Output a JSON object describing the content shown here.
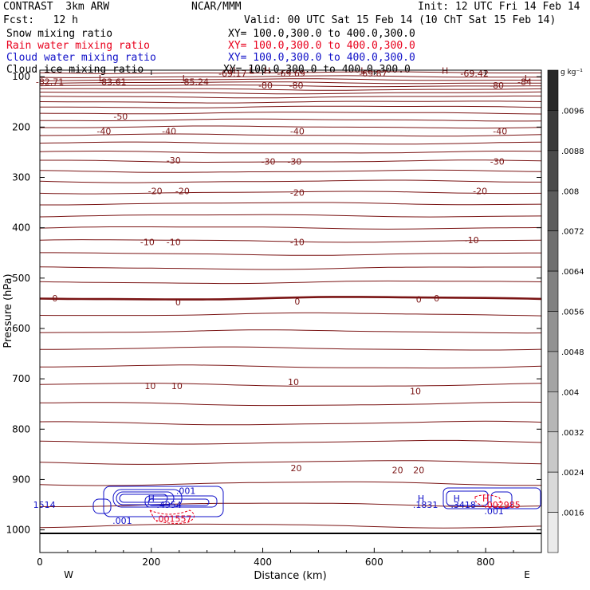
{
  "header": {
    "model": "CONTRAST  3km ARW",
    "org": "NCAR/MMM",
    "init": "Init: 12 UTC Fri 14 Feb 14",
    "fcst": "Fcst:   12 h",
    "valid": "Valid: 00 UTC Sat 15 Feb 14 (10 ChT Sat 15 Feb 14)"
  },
  "fields": [
    {
      "name": "Snow mixing ratio",
      "xy": "XY= 100.0,300.0 to 400.0,300.0",
      "color": "#000000"
    },
    {
      "name": "Rain water mixing ratio",
      "xy": "XY= 100.0,300.0 to 400.0,300.0",
      "color": "#e8001c"
    },
    {
      "name": "Cloud water mixing ratio",
      "xy": "XY= 100.0,300.0 to 400.0,300.0",
      "color": "#1010c8"
    },
    {
      "name": "Cloud ice mixing ratio",
      "xy": "XY= 100.0,300.0 to 400.0,300.0",
      "color": "#000000"
    }
  ],
  "chart_data": {
    "type": "line",
    "xlabel": "Distance (km)",
    "ylabel": "Pressure (hPa)",
    "xlim": [
      0,
      900
    ],
    "ylim": [
      1045,
      87
    ],
    "xticks": [
      "0",
      "200",
      "400",
      "600",
      "800"
    ],
    "yticks": [
      "100",
      "200",
      "300",
      "400",
      "500",
      "600",
      "700",
      "800",
      "900",
      "1000"
    ],
    "x_end_labels": {
      "left": "W",
      "right": "E"
    },
    "temperature_color": "#7a1414",
    "temperature_labels": [
      {
        "x": 18,
        "p": 110,
        "text": "-82.71"
      },
      {
        "x": 130,
        "p": 110,
        "text": "-83.61"
      },
      {
        "x": 278,
        "p": 110,
        "text": "-85.24"
      },
      {
        "x": 346,
        "p": 93,
        "text": "-69.17"
      },
      {
        "x": 451,
        "p": 93,
        "text": "-69.69"
      },
      {
        "x": 598,
        "p": 93,
        "text": "-69.87"
      },
      {
        "x": 780,
        "p": 93,
        "text": "-69.42"
      },
      {
        "x": 870,
        "p": 110,
        "text": "-84"
      },
      {
        "x": 405,
        "p": 117,
        "text": "-80"
      },
      {
        "x": 460,
        "p": 117,
        "text": "-80"
      },
      {
        "x": 820,
        "p": 117,
        "text": "-80"
      },
      {
        "x": 145,
        "p": 179,
        "text": "-50"
      },
      {
        "x": 115,
        "p": 208,
        "text": "-40"
      },
      {
        "x": 232,
        "p": 208,
        "text": "-40"
      },
      {
        "x": 462,
        "p": 208,
        "text": "-40"
      },
      {
        "x": 826,
        "p": 208,
        "text": "-40"
      },
      {
        "x": 240,
        "p": 266,
        "text": "-30"
      },
      {
        "x": 410,
        "p": 268,
        "text": "-30"
      },
      {
        "x": 457,
        "p": 268,
        "text": "-30"
      },
      {
        "x": 821,
        "p": 268,
        "text": "-30"
      },
      {
        "x": 207,
        "p": 327,
        "text": "-20"
      },
      {
        "x": 256,
        "p": 327,
        "text": "-20"
      },
      {
        "x": 462,
        "p": 330,
        "text": "-20"
      },
      {
        "x": 790,
        "p": 327,
        "text": "-20"
      },
      {
        "x": 193,
        "p": 428,
        "text": "-10"
      },
      {
        "x": 240,
        "p": 428,
        "text": "-10"
      },
      {
        "x": 462,
        "p": 428,
        "text": "-10"
      },
      {
        "x": 775,
        "p": 424,
        "text": "-10"
      },
      {
        "x": 27,
        "p": 540,
        "text": "0"
      },
      {
        "x": 248,
        "p": 548,
        "text": "0"
      },
      {
        "x": 462,
        "p": 546,
        "text": "0"
      },
      {
        "x": 680,
        "p": 542,
        "text": "0"
      },
      {
        "x": 712,
        "p": 540,
        "text": "0"
      },
      {
        "x": 198,
        "p": 714,
        "text": "10"
      },
      {
        "x": 246,
        "p": 714,
        "text": "10"
      },
      {
        "x": 455,
        "p": 706,
        "text": "10"
      },
      {
        "x": 674,
        "p": 724,
        "text": "10"
      },
      {
        "x": 460,
        "p": 877,
        "text": "20"
      },
      {
        "x": 642,
        "p": 881,
        "text": "20"
      },
      {
        "x": 680,
        "p": 881,
        "text": "20"
      }
    ],
    "hl_markers": [
      {
        "x": 110,
        "p": 103,
        "text": "L",
        "color": "#7a1414"
      },
      {
        "x": 260,
        "p": 103,
        "text": "L",
        "color": "#7a1414"
      },
      {
        "x": 346,
        "p": 88,
        "text": "H",
        "color": "#7a1414"
      },
      {
        "x": 380,
        "p": 88,
        "text": "L",
        "color": "#7a1414"
      },
      {
        "x": 408,
        "p": 88,
        "text": "H",
        "color": "#7a1414"
      },
      {
        "x": 580,
        "p": 88,
        "text": "L",
        "color": "#7a1414"
      },
      {
        "x": 727,
        "p": 88,
        "text": "H",
        "color": "#7a1414"
      },
      {
        "x": 874,
        "p": 103,
        "text": "L",
        "color": "#7a1414"
      },
      {
        "x": 200,
        "p": 937,
        "text": "H",
        "color": "#1010c8"
      },
      {
        "x": 684,
        "p": 937,
        "text": "H",
        "color": "#1010c8"
      },
      {
        "x": 748,
        "p": 937,
        "text": "H",
        "color": "#1010c8"
      },
      {
        "x": 800,
        "p": 937,
        "text": "H",
        "color": "#e8001c"
      }
    ],
    "cloud_labels": [
      {
        "x": 8,
        "p": 950,
        "text": "1514",
        "color": "#1010c8"
      },
      {
        "x": 232,
        "p": 950,
        "text": ".4954",
        "color": "#1010c8"
      },
      {
        "x": 262,
        "p": 922,
        "text": ".001",
        "color": "#1010c8"
      },
      {
        "x": 148,
        "p": 982,
        "text": ".001",
        "color": "#1010c8"
      },
      {
        "x": 240,
        "p": 978,
        "text": ".001557",
        "color": "#e8001c"
      },
      {
        "x": 692,
        "p": 950,
        "text": ".1831",
        "color": "#1010c8"
      },
      {
        "x": 760,
        "p": 950,
        "text": ".3418",
        "color": "#1010c8"
      },
      {
        "x": 830,
        "p": 950,
        "text": ".002985",
        "color": "#e8001c"
      },
      {
        "x": 815,
        "p": 963,
        "text": ".001",
        "color": "#1010c8"
      }
    ],
    "colorbar": {
      "unit": "g kg⁻¹",
      "labels": [
        ".0096",
        ".0088",
        ".008",
        ".0072",
        ".0064",
        ".0056",
        ".0048",
        ".004",
        ".0032",
        ".0024",
        ".0016"
      ]
    }
  }
}
